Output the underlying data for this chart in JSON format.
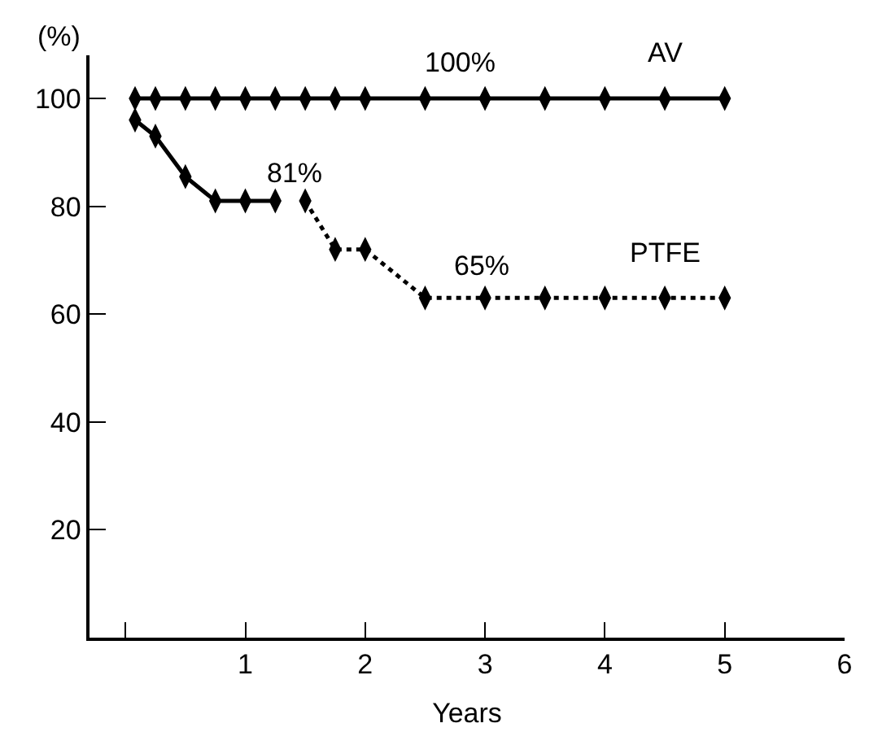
{
  "chart_data": {
    "type": "line",
    "xlabel": "Years",
    "ylabel": "(%)",
    "xlim": [
      -0.3,
      6
    ],
    "xticks": [
      {
        "value": 0,
        "label": null
      },
      1,
      2,
      3,
      4,
      5,
      6
    ],
    "ylim": [
      0,
      108
    ],
    "yticks": [
      20,
      40,
      60,
      80,
      100
    ],
    "grid": false,
    "legend": false,
    "marker": "diamond",
    "series": [
      {
        "name": "AV",
        "color": "#000000",
        "line_style": "solid",
        "x": [
          0.08,
          0.25,
          0.5,
          0.75,
          1,
          1.25,
          1.5,
          1.75,
          2,
          2.5,
          3,
          3.5,
          4,
          4.5,
          5
        ],
        "values": [
          100,
          100,
          100,
          100,
          100,
          100,
          100,
          100,
          100,
          100,
          100,
          100,
          100,
          100,
          100
        ]
      },
      {
        "color": "#000000",
        "line_style": "solid",
        "x": [
          0.08,
          0.25,
          0.5,
          0.75,
          1,
          1.25
        ],
        "values": [
          96,
          93,
          85.5,
          81,
          81,
          81
        ]
      },
      {
        "name": "PTFE",
        "color": "#000000",
        "line_style": "dotted",
        "x": [
          1.5,
          1.75,
          2,
          2.5,
          3,
          3.5,
          4,
          4.5,
          5
        ],
        "values": [
          81,
          72,
          72,
          63,
          63,
          63,
          63,
          63,
          63
        ]
      }
    ],
    "annotations": [
      "100%",
      "81%",
      "65%"
    ]
  }
}
